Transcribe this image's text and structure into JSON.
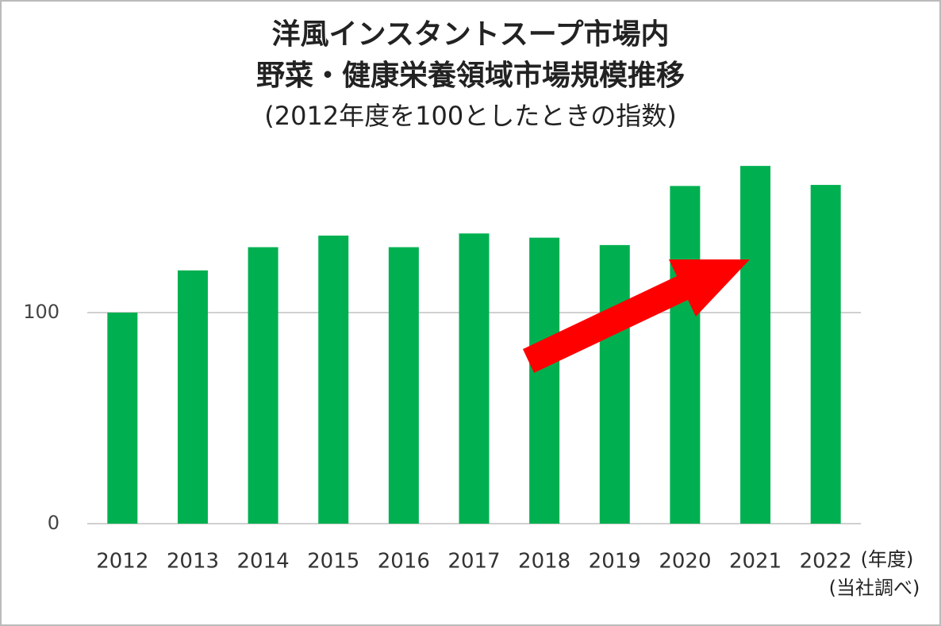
{
  "chart_data": {
    "type": "bar",
    "title": [
      "洋風インスタントスープ市場内",
      "野菜・健康栄養領域市場規模推移"
    ],
    "subtitle": "(2012年度を100としたときの指数)",
    "x_unit": "(年度)",
    "source": "(当社調べ)",
    "categories": [
      "2012",
      "2013",
      "2014",
      "2015",
      "2016",
      "2017",
      "2018",
      "2019",
      "2020",
      "2021",
      "2022"
    ],
    "values": [
      100,
      120,
      131,
      136.5,
      131,
      137.5,
      135.5,
      132,
      160,
      169.5,
      160.5
    ],
    "color": "#00b050",
    "ylim": [
      0,
      175
    ],
    "yticks": [
      0,
      100
    ],
    "grid": true
  }
}
